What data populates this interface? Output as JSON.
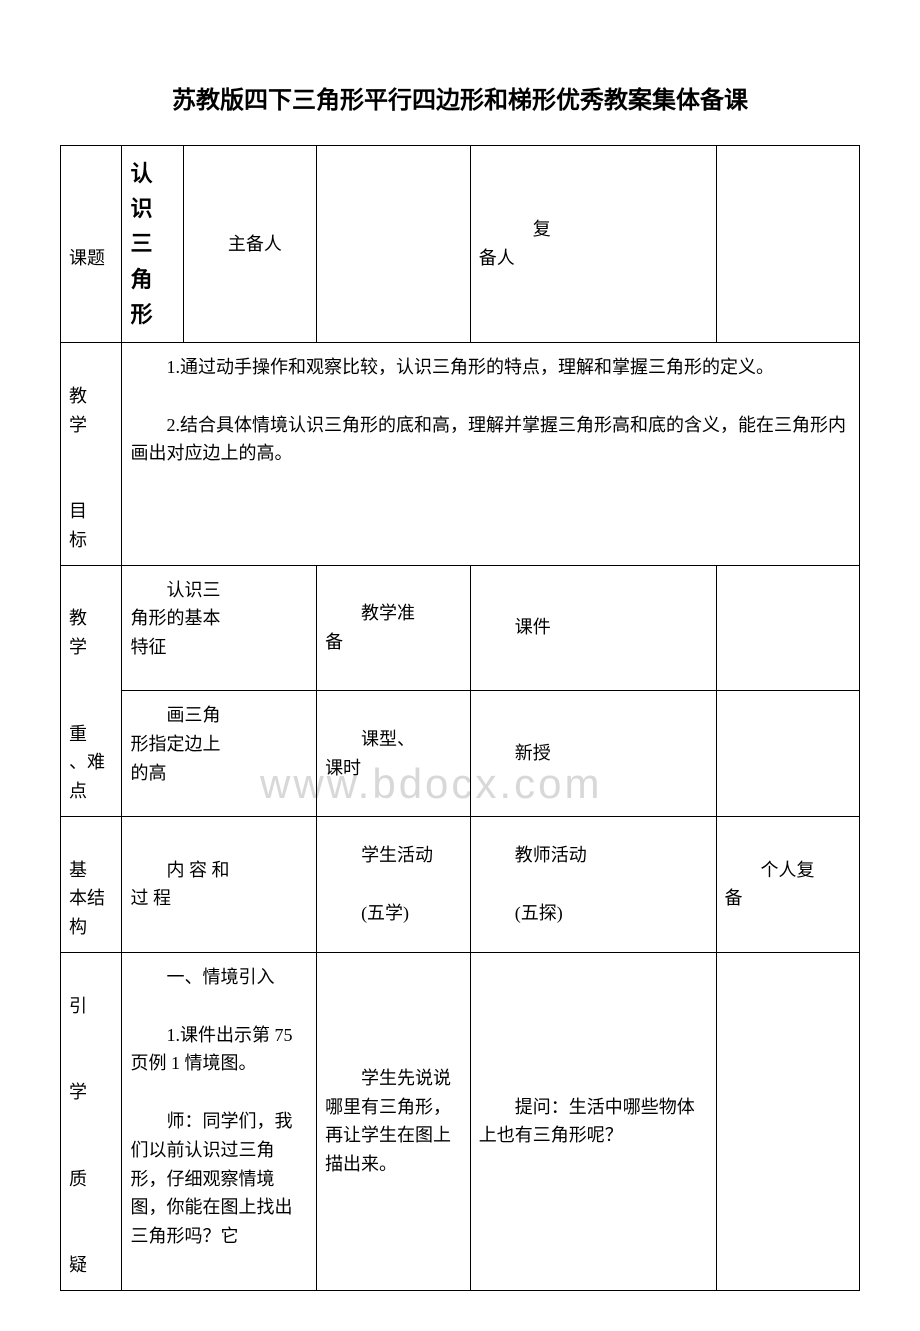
{
  "title": "苏教版四下三角形平行四边形和梯形优秀教案集体备课",
  "watermark": "www.bdocx.com",
  "row1": {
    "label": "课题",
    "value": "认识三角形",
    "col3": "主备人",
    "col4": "",
    "col5": "复备人",
    "col6": ""
  },
  "row2": {
    "label": "教学\n\n目标",
    "content1": "　　1.通过动手操作和观察比较，认识三角形的特点，理解和掌握三角形的定义。",
    "content2": "　　2.结合具体情境认识三角形的底和高，理解并掌握三角形高和底的含义，能在三角形内画出对应边上的高。"
  },
  "row3": {
    "label": "教学",
    "col2": "认识三角形的基本特征",
    "col3": "教学准备",
    "col4": "课件"
  },
  "row4": {
    "label": "重、难点",
    "col2": "画三角形指定边上的高",
    "col3": "课型、课时",
    "col4": "新授"
  },
  "row5": {
    "label": "基本结构",
    "col2": "内 容 和过 程",
    "col3_line1": "学生活动",
    "col3_line2": "(五学)",
    "col4_line1": "教师活动",
    "col4_line2": "(五探)",
    "col5": "个人复备"
  },
  "row6": {
    "label": "引\n\n学\n\n质\n\n疑",
    "col2_p1": "　　一、情境引入",
    "col2_p2": "　　1.课件出示第 75 页例 1 情境图。",
    "col2_p3": "　　师：同学们，我们以前认识过三角形，仔细观察情境图，你能在图上找出三角形吗？它",
    "col3": "　　学生先说说哪里有三角形，再让学生在图上描出来。",
    "col4": "　　提问：生活中哪些物体上也有三角形呢？"
  }
}
